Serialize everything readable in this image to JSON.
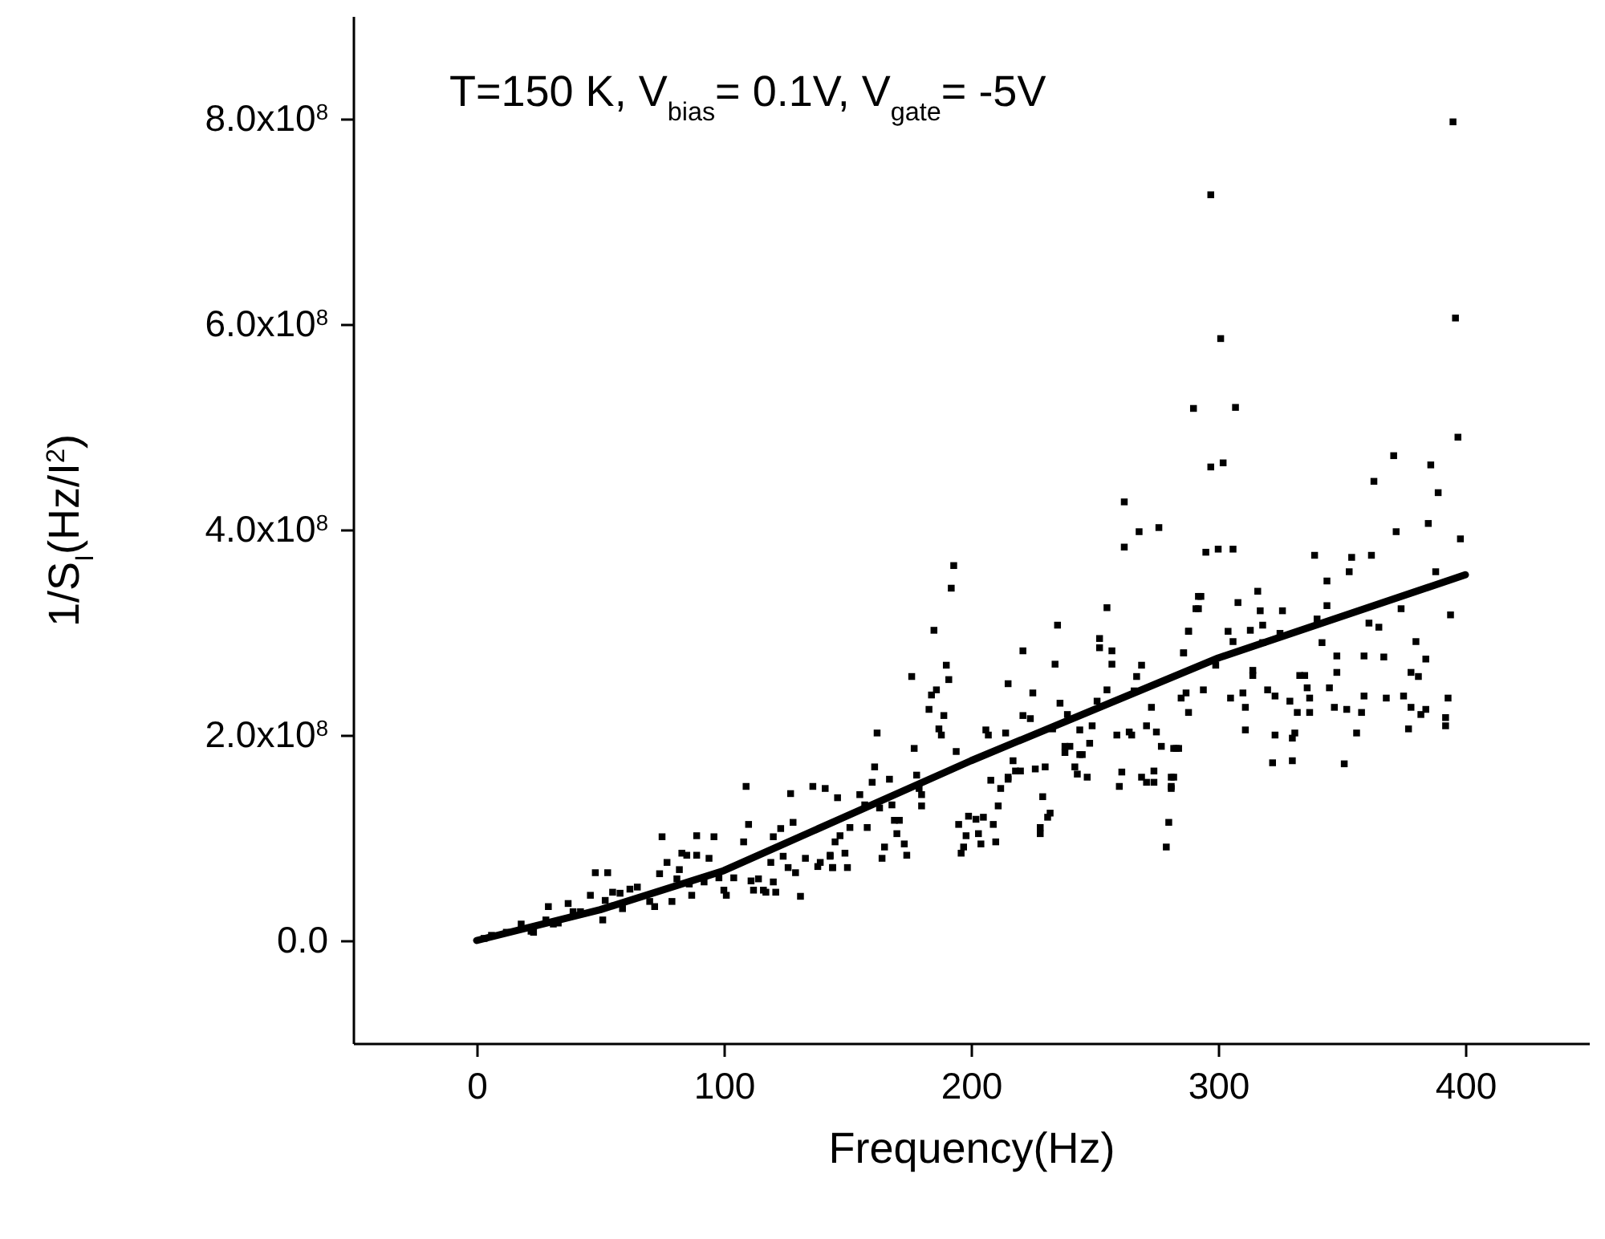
{
  "chart_data": {
    "type": "scatter",
    "xlabel": "Frequency(Hz)",
    "ylabel": "1/S$_{I}$(Hz/I$^{2}$)",
    "annotations": [
      "T=150 K, V$_{bias}$= 0.1V, V$_{gate}$= -5V"
    ],
    "xlim": [
      -50,
      450
    ],
    "ylim": [
      -100000000.0,
      900000000.0
    ],
    "xticks": [
      0,
      100,
      200,
      300,
      400
    ],
    "yticks": [
      {
        "value": 0,
        "label": "0.0"
      },
      {
        "value": 200000000.0,
        "label": "2.0x10$^{8}$"
      },
      {
        "value": 400000000.0,
        "label": "4.0x10$^{8}$"
      },
      {
        "value": 600000000.0,
        "label": "6.0x10$^{8}$"
      },
      {
        "value": 800000000.0,
        "label": "8.0x10$^{8}$"
      }
    ],
    "series": [
      {
        "marker": "square",
        "color": "#000000",
        "x": [
          395,
          297,
          396,
          301,
          290,
          307,
          397,
          297,
          302,
          371,
          386,
          363,
          389,
          372,
          385,
          398,
          295,
          300,
          306,
          339,
          354,
          362,
          353,
          344,
          388,
          316,
          308,
          293,
          292,
          317,
          326,
          344,
          374,
          394,
          288,
          304,
          313,
          318,
          325,
          340,
          361,
          365,
          380,
          306,
          318,
          342,
          286,
          348,
          359,
          367,
          384,
          314,
          299,
          333,
          335,
          348,
          378,
          381,
          314,
          287,
          294,
          305,
          310,
          311,
          320,
          323,
          329,
          336,
          337,
          332,
          337,
          345,
          347,
          352,
          358,
          359,
          368,
          375,
          378,
          382,
          384,
          392,
          393,
          311,
          323,
          330,
          331,
          356,
          377,
          392,
          322,
          330,
          351,
          283,
          282,
          281,
          262,
          268,
          276,
          262,
          193,
          192,
          185,
          255,
          292,
          291,
          288,
          235,
          221,
          252,
          252,
          257,
          257,
          286,
          269,
          267,
          266,
          190,
          191,
          184,
          186,
          183,
          189,
          234,
          176,
          215,
          225,
          255,
          285,
          288,
          236,
          239,
          251,
          273,
          221,
          224,
          187,
          188,
          206,
          207,
          214,
          233,
          244,
          249,
          259,
          264,
          265,
          271,
          275,
          277,
          282,
          284,
          162,
          177,
          194,
          238,
          240,
          238,
          244,
          245,
          248,
          217,
          215,
          215,
          218,
          220,
          226,
          230,
          242,
          243,
          247,
          161,
          167,
          160,
          155,
          146,
          178,
          179,
          180,
          180,
          208,
          212,
          211,
          261,
          260,
          269,
          271,
          274,
          274,
          281,
          281,
          229,
          232,
          231,
          228,
          228,
          157,
          163,
          168,
          169,
          171,
          170,
          151,
          158,
          145,
          147,
          143,
          149,
          144,
          150,
          164,
          165,
          173,
          174,
          195,
          199,
          202,
          205,
          209,
          203,
          198,
          197,
          196,
          204,
          210,
          280,
          279,
          109,
          127,
          136,
          141,
          110,
          75,
          89,
          96,
          108,
          120,
          123,
          128,
          83,
          85,
          89,
          77,
          82,
          94,
          124,
          119,
          133,
          139,
          143,
          48,
          53,
          74,
          81,
          126,
          129,
          138,
          144,
          86,
          92,
          98,
          104,
          111,
          114,
          120,
          87,
          100,
          101,
          112,
          116,
          117,
          121,
          131,
          55,
          58,
          62,
          65,
          70,
          72,
          79,
          46,
          52,
          59,
          37,
          39,
          42,
          29,
          28,
          31,
          33,
          51,
          18,
          22,
          23,
          12,
          6,
          3
        ],
        "values": [
          797000000.0,
          726000000.0,
          606000000.0,
          586000000.0,
          518000000.0,
          519000000.0,
          490000000.0,
          461000000.0,
          465000000.0,
          472000000.0,
          463000000.0,
          447000000.0,
          436000000.0,
          398000000.0,
          406000000.0,
          391000000.0,
          378000000.0,
          381000000.0,
          381000000.0,
          375000000.0,
          373000000.0,
          375000000.0,
          359000000.0,
          350000000.0,
          359000000.0,
          340000000.0,
          329000000.0,
          335000000.0,
          323000000.0,
          321000000.0,
          321000000.0,
          326000000.0,
          323000000.0,
          317000000.0,
          301000000.0,
          301000000.0,
          302000000.0,
          307000000.0,
          299000000.0,
          313000000.0,
          309000000.0,
          305000000.0,
          291000000.0,
          291000000.0,
          290000000.0,
          290000000.0,
          280000000.0,
          277000000.0,
          277000000.0,
          276000000.0,
          274000000.0,
          263000000.0,
          268000000.0,
          258000000.0,
          258000000.0,
          261000000.0,
          261000000.0,
          257000000.0,
          258000000.0,
          241000000.0,
          244000000.0,
          236000000.0,
          241000000.0,
          227000000.0,
          244000000.0,
          238000000.0,
          233000000.0,
          246000000.0,
          236000000.0,
          222000000.0,
          222000000.0,
          246000000.0,
          227000000.0,
          225000000.0,
          222000000.0,
          238000000.0,
          236000000.0,
          238000000.0,
          227000000.0,
          220000000.0,
          225000000.0,
          217000000.0,
          236000000.0,
          205000000.0,
          200000000.0,
          197000000.0,
          202000000.0,
          202000000.0,
          206000000.0,
          209000000.0,
          173000000.0,
          175000000.0,
          172000000.0,
          187000000.0,
          159000000.0,
          150000000.0,
          427000000.0,
          398000000.0,
          402000000.0,
          383000000.0,
          365000000.0,
          343000000.0,
          302000000.0,
          324000000.0,
          335000000.0,
          323000000.0,
          301000000.0,
          307000000.0,
          282000000.0,
          294000000.0,
          285000000.0,
          282000000.0,
          269000000.0,
          280000000.0,
          268000000.0,
          257000000.0,
          243000000.0,
          268000000.0,
          254000000.0,
          239000000.0,
          244000000.0,
          225000000.0,
          219000000.0,
          269000000.0,
          257000000.0,
          250000000.0,
          241000000.0,
          244000000.0,
          236000000.0,
          222000000.0,
          231000000.0,
          220000000.0,
          233000000.0,
          227000000.0,
          219000000.0,
          216000000.0,
          206000000.0,
          200000000.0,
          205000000.0,
          200000000.0,
          202000000.0,
          206000000.0,
          205000000.0,
          209000000.0,
          200000000.0,
          203000000.0,
          200000000.0,
          209000000.0,
          203000000.0,
          189000000.0,
          187000000.0,
          187000000.0,
          202000000.0,
          187000000.0,
          184000000.0,
          189000000.0,
          189000000.0,
          183000000.0,
          181000000.0,
          181000000.0,
          192000000.0,
          175000000.0,
          157000000.0,
          159000000.0,
          165000000.0,
          165000000.0,
          167000000.0,
          169000000.0,
          169000000.0,
          162000000.0,
          159000000.0,
          169000000.0,
          157000000.0,
          154000000.0,
          142000000.0,
          139000000.0,
          161000000.0,
          148000000.0,
          142000000.0,
          131000000.0,
          156000000.0,
          148000000.0,
          131000000.0,
          164000000.0,
          150000000.0,
          159000000.0,
          154000000.0,
          154000000.0,
          165000000.0,
          148000000.0,
          159000000.0,
          140000000.0,
          124000000.0,
          120000000.0,
          110000000.0,
          104000000.0,
          132000000.0,
          129000000.0,
          132000000.0,
          117000000.0,
          117000000.0,
          104000000.0,
          110000000.0,
          110000000.0,
          96000000.0,
          102000000.0,
          83000000.0,
          85000000.0,
          71000000.0,
          71000000.0,
          80000000.0,
          91000000.0,
          94000000.0,
          83000000.0,
          113000000.0,
          121000000.0,
          118000000.0,
          120000000.0,
          113000000.0,
          104000000.0,
          102000000.0,
          91000000.0,
          85000000.0,
          94000000.0,
          96000000.0,
          115000000.0,
          91000000.0,
          150000000.0,
          143000000.0,
          150000000.0,
          148000000.0,
          113000000.0,
          101000000.0,
          102000000.0,
          101000000.0,
          96000000.0,
          101000000.0,
          109000000.0,
          115000000.0,
          85000000.0,
          83000000.0,
          83000000.0,
          76000000.0,
          69000000.0,
          80000000.0,
          82000000.0,
          76000000.0,
          80000000.0,
          76000000.0,
          82000000.0,
          66000000.0,
          66000000.0,
          65000000.0,
          60000000.0,
          71000000.0,
          66000000.0,
          72000000.0,
          71000000.0,
          55000000.0,
          57000000.0,
          61000000.0,
          61000000.0,
          58000000.0,
          60000000.0,
          57000000.0,
          44000000.0,
          49000000.0,
          44000000.0,
          49000000.0,
          49000000.0,
          47000000.0,
          47000000.0,
          43000000.0,
          47000000.0,
          46000000.0,
          50000000.0,
          52000000.0,
          38000000.0,
          33000000.0,
          38000000.0,
          44000000.0,
          39000000.0,
          31000000.0,
          36000000.0,
          28000000.0,
          28000000.0,
          33000000.0,
          20000000.0,
          16000000.0,
          17000000.0,
          20000000.0,
          16000000.0,
          9000000.0,
          8000000.0,
          8000000.0,
          5000000.0,
          2000000.0
        ]
      },
      {
        "type": "line",
        "color": "#000000",
        "x": [
          0,
          50,
          100,
          200,
          300,
          400
        ],
        "values": [
          0,
          30000000.0,
          68000000.0,
          175000000.0,
          275000000.0,
          356000000.0
        ]
      }
    ]
  }
}
